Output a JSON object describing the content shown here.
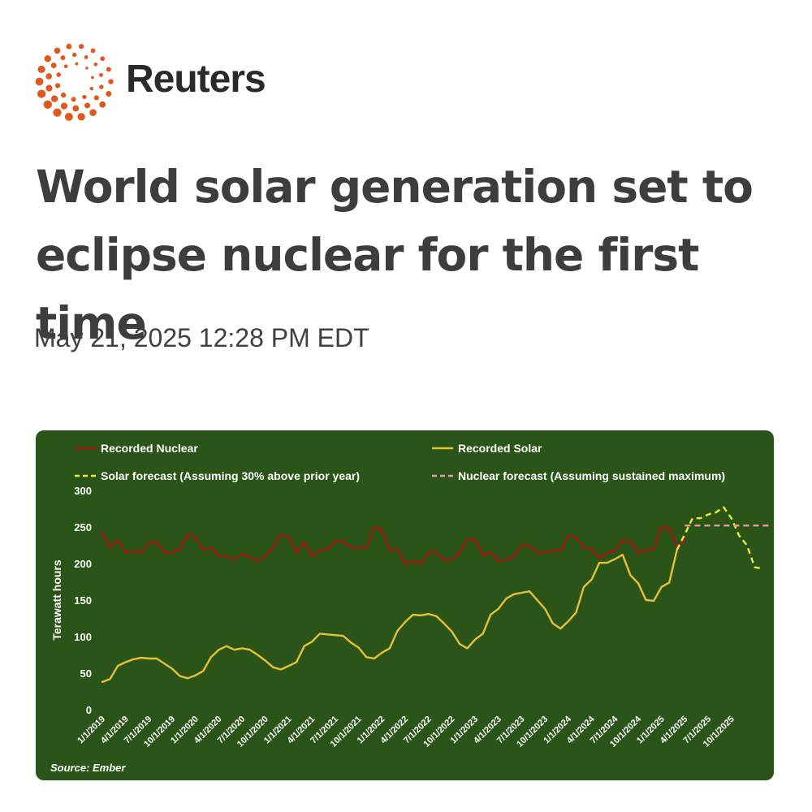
{
  "brand": {
    "logo_icon": "reuters-dot-circle-logo",
    "name": "Reuters",
    "logo_color": "#e0581c"
  },
  "article": {
    "headline_line1": "World solar generation set to",
    "headline_line2": "eclipse nuclear for the first time",
    "timestamp": "May 21, 2025 12:28 PM EDT"
  },
  "chart_data": {
    "type": "line",
    "title": "",
    "xlabel": "",
    "ylabel": "Terawatt hours",
    "ylim": [
      0,
      300
    ],
    "yticks": [
      0,
      50,
      100,
      150,
      200,
      250,
      300
    ],
    "grid": false,
    "legend_position": "top",
    "source": "Source: Ember",
    "background": "#2a5418",
    "x_tick_labels": [
      "1/1/2019",
      "4/1/2019",
      "7/1/2019",
      "10/1/2019",
      "1/1/2020",
      "4/1/2020",
      "7/1/2020",
      "10/1/2020",
      "1/1/2021",
      "4/1/2021",
      "7/1/2021",
      "10/1/2021",
      "1/1/2022",
      "4/1/2022",
      "7/1/2022",
      "10/1/2022",
      "1/1/2023",
      "4/1/2023",
      "7/1/2023",
      "10/1/2023",
      "1/1/2024",
      "4/1/2024",
      "7/1/2024",
      "10/1/2024",
      "1/1/2025",
      "4/1/2025",
      "7/1/2025",
      "10/1/2025"
    ],
    "series": [
      {
        "name": "Recorded Nuclear",
        "color": "#a31a10",
        "dash": "solid",
        "x_start_month_index": 0,
        "values": [
          242,
          222,
          232,
          215,
          217,
          215,
          228,
          230,
          215,
          215,
          220,
          240,
          236,
          218,
          222,
          210,
          210,
          206,
          213,
          209,
          204,
          210,
          222,
          240,
          236,
          215,
          230,
          210,
          218,
          220,
          231,
          230,
          222,
          222,
          222,
          250,
          246,
          218,
          220,
          200,
          203,
          200,
          215,
          215,
          205,
          205,
          215,
          233,
          233,
          212,
          215,
          203,
          205,
          210,
          225,
          224,
          215,
          215,
          218,
          218,
          238,
          236,
          222,
          220,
          207,
          215,
          218,
          232,
          230,
          215,
          218,
          220,
          250,
          248,
          222,
          233
        ]
      },
      {
        "name": "Recorded Solar",
        "color": "#e6c233",
        "dash": "solid",
        "x_start_month_index": 0,
        "values": [
          38,
          42,
          60,
          65,
          69,
          71,
          70,
          70,
          63,
          56,
          46,
          43,
          47,
          53,
          72,
          82,
          87,
          82,
          84,
          82,
          75,
          67,
          58,
          55,
          60,
          65,
          87,
          93,
          104,
          103,
          102,
          101,
          92,
          85,
          72,
          70,
          78,
          84,
          108,
          120,
          130,
          129,
          131,
          128,
          118,
          107,
          90,
          84,
          96,
          104,
          130,
          138,
          152,
          158,
          160,
          162,
          150,
          138,
          118,
          111,
          121,
          133,
          168,
          178,
          201,
          201,
          206,
          212,
          184,
          173,
          150,
          149,
          168,
          174,
          219
        ]
      },
      {
        "name": "Solar forecast (Assuming 30% above prior year)",
        "color": "#e8ec3a",
        "dash": "dashed",
        "x_start_month_index": 74,
        "values": [
          219,
          240,
          262,
          262,
          267,
          270,
          277,
          262,
          238,
          225,
          195,
          193
        ]
      },
      {
        "name": "Nuclear forecast (Assuming sustained maximum)",
        "color": "#e89aa6",
        "dash": "dashed",
        "x_start_month_index": 75,
        "values": [
          252,
          252,
          252,
          252,
          252,
          252,
          252,
          252,
          252,
          252,
          252,
          252
        ]
      }
    ]
  }
}
